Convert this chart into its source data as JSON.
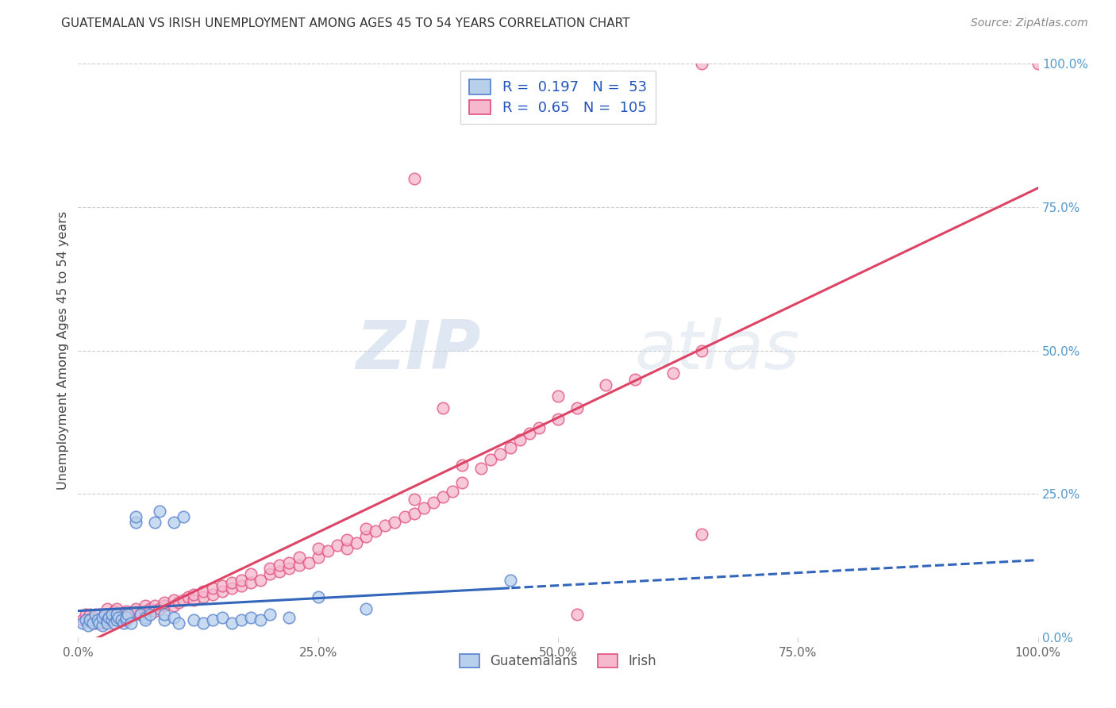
{
  "title": "GUATEMALAN VS IRISH UNEMPLOYMENT AMONG AGES 45 TO 54 YEARS CORRELATION CHART",
  "source": "Source: ZipAtlas.com",
  "ylabel": "Unemployment Among Ages 45 to 54 years",
  "watermark_zip": "ZIP",
  "watermark_atlas": "atlas",
  "xmin": 0.0,
  "xmax": 1.0,
  "ymin": 0.0,
  "ymax": 1.0,
  "guatemalan_R": 0.197,
  "guatemalan_N": 53,
  "irish_R": 0.65,
  "irish_N": 105,
  "guatemalan_face_color": "#b8d0eb",
  "guatemalan_edge_color": "#5580cc",
  "irish_face_color": "#f5b8cc",
  "irish_edge_color": "#e05080",
  "guatemalan_line_color": "#3366bb",
  "irish_line_color": "#dd4466",
  "grid_color": "#cccccc",
  "bg_color": "#ffffff",
  "right_axis_color": "#5599cc",
  "title_color": "#333333",
  "source_color": "#888888",
  "ylabel_color": "#444444",
  "legend_text_color": "#2255bb",
  "bottom_legend_color": "#555555",
  "guat_x": [
    0.005,
    0.008,
    0.01,
    0.012,
    0.015,
    0.018,
    0.02,
    0.022,
    0.025,
    0.025,
    0.028,
    0.03,
    0.03,
    0.032,
    0.035,
    0.035,
    0.038,
    0.04,
    0.04,
    0.042,
    0.045,
    0.048,
    0.05,
    0.05,
    0.052,
    0.055,
    0.06,
    0.06,
    0.065,
    0.07,
    0.07,
    0.075,
    0.08,
    0.085,
    0.09,
    0.09,
    0.1,
    0.1,
    0.105,
    0.11,
    0.12,
    0.13,
    0.14,
    0.15,
    0.16,
    0.17,
    0.18,
    0.19,
    0.2,
    0.22,
    0.25,
    0.3,
    0.45
  ],
  "guat_y": [
    0.025,
    0.03,
    0.02,
    0.03,
    0.025,
    0.04,
    0.03,
    0.025,
    0.02,
    0.035,
    0.04,
    0.03,
    0.025,
    0.035,
    0.03,
    0.04,
    0.025,
    0.03,
    0.04,
    0.035,
    0.03,
    0.025,
    0.03,
    0.035,
    0.04,
    0.025,
    0.2,
    0.21,
    0.04,
    0.035,
    0.03,
    0.04,
    0.2,
    0.22,
    0.03,
    0.04,
    0.035,
    0.2,
    0.025,
    0.21,
    0.03,
    0.025,
    0.03,
    0.035,
    0.025,
    0.03,
    0.035,
    0.03,
    0.04,
    0.035,
    0.07,
    0.05,
    0.1
  ],
  "irish_x": [
    0.005,
    0.008,
    0.01,
    0.012,
    0.015,
    0.018,
    0.02,
    0.022,
    0.025,
    0.025,
    0.028,
    0.03,
    0.03,
    0.032,
    0.035,
    0.038,
    0.04,
    0.04,
    0.042,
    0.045,
    0.048,
    0.05,
    0.05,
    0.055,
    0.06,
    0.06,
    0.065,
    0.07,
    0.07,
    0.075,
    0.08,
    0.08,
    0.085,
    0.09,
    0.09,
    0.1,
    0.1,
    0.105,
    0.11,
    0.115,
    0.12,
    0.12,
    0.13,
    0.13,
    0.14,
    0.14,
    0.15,
    0.15,
    0.16,
    0.16,
    0.17,
    0.17,
    0.18,
    0.18,
    0.19,
    0.2,
    0.2,
    0.21,
    0.21,
    0.22,
    0.22,
    0.23,
    0.23,
    0.24,
    0.25,
    0.25,
    0.26,
    0.27,
    0.28,
    0.28,
    0.29,
    0.3,
    0.3,
    0.31,
    0.32,
    0.33,
    0.34,
    0.35,
    0.35,
    0.36,
    0.37,
    0.38,
    0.39,
    0.4,
    0.4,
    0.42,
    0.43,
    0.44,
    0.45,
    0.46,
    0.47,
    0.48,
    0.5,
    0.5,
    0.52,
    0.55,
    0.58,
    0.62,
    0.65,
    0.35,
    0.65,
    1.0,
    0.65,
    0.52,
    0.38
  ],
  "irish_y": [
    0.03,
    0.04,
    0.03,
    0.04,
    0.035,
    0.025,
    0.03,
    0.04,
    0.025,
    0.035,
    0.04,
    0.03,
    0.05,
    0.035,
    0.04,
    0.045,
    0.03,
    0.05,
    0.04,
    0.035,
    0.04,
    0.045,
    0.035,
    0.04,
    0.045,
    0.05,
    0.04,
    0.045,
    0.055,
    0.05,
    0.045,
    0.055,
    0.05,
    0.055,
    0.06,
    0.055,
    0.065,
    0.06,
    0.065,
    0.07,
    0.065,
    0.075,
    0.07,
    0.08,
    0.075,
    0.085,
    0.08,
    0.09,
    0.085,
    0.095,
    0.09,
    0.1,
    0.095,
    0.11,
    0.1,
    0.11,
    0.12,
    0.115,
    0.125,
    0.12,
    0.13,
    0.125,
    0.14,
    0.13,
    0.14,
    0.155,
    0.15,
    0.16,
    0.155,
    0.17,
    0.165,
    0.175,
    0.19,
    0.185,
    0.195,
    0.2,
    0.21,
    0.215,
    0.24,
    0.225,
    0.235,
    0.245,
    0.255,
    0.27,
    0.3,
    0.295,
    0.31,
    0.32,
    0.33,
    0.345,
    0.355,
    0.365,
    0.38,
    0.42,
    0.4,
    0.44,
    0.45,
    0.46,
    0.5,
    0.8,
    0.18,
    1.0,
    1.0,
    0.04,
    0.4
  ]
}
